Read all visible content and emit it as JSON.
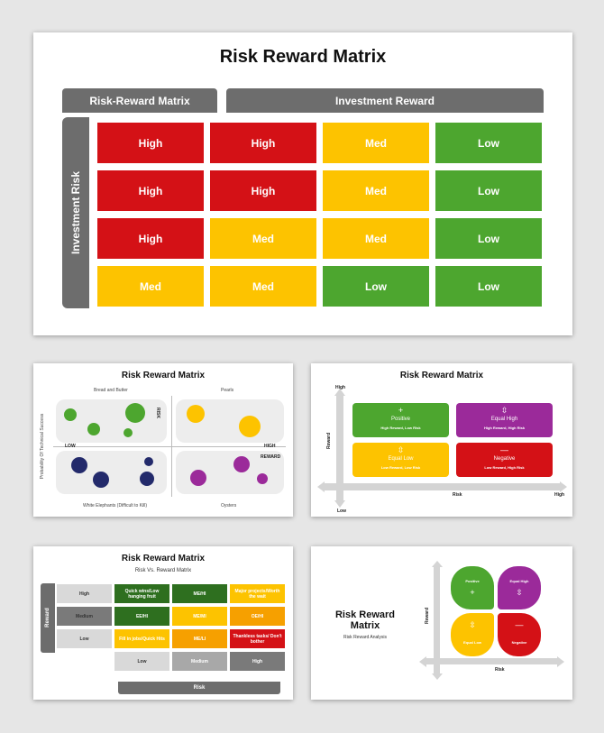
{
  "slide1": {
    "title": "Risk Reward Matrix",
    "header_left": "Risk-Reward Matrix",
    "header_right": "Investment Reward",
    "side_label": "Investment Risk",
    "rows": [
      [
        {
          "label": "High",
          "color": "red"
        },
        {
          "label": "High",
          "color": "red"
        },
        {
          "label": "Med",
          "color": "yellow"
        },
        {
          "label": "Low",
          "color": "green"
        }
      ],
      [
        {
          "label": "High",
          "color": "red"
        },
        {
          "label": "High",
          "color": "red"
        },
        {
          "label": "Med",
          "color": "yellow"
        },
        {
          "label": "Low",
          "color": "green"
        }
      ],
      [
        {
          "label": "High",
          "color": "red"
        },
        {
          "label": "Med",
          "color": "yellow"
        },
        {
          "label": "Med",
          "color": "yellow"
        },
        {
          "label": "Low",
          "color": "green"
        }
      ],
      [
        {
          "label": "Med",
          "color": "yellow"
        },
        {
          "label": "Med",
          "color": "yellow"
        },
        {
          "label": "Low",
          "color": "green"
        },
        {
          "label": "Low",
          "color": "green"
        }
      ]
    ]
  },
  "slide2": {
    "title": "Risk Reward Matrix",
    "top_left": "Bread and Butter",
    "top_right": "Pearls",
    "bottom_left": "White Elephants (Difficult to Kill)",
    "bottom_right": "Oysters",
    "low": "LOW",
    "high": "HIGH",
    "risk": "RISK",
    "reward": "REWARD",
    "y_axis": "Probability Of Technical Success"
  },
  "slide3": {
    "title": "Risk Reward Matrix",
    "y_high": "High",
    "y_low": "Low",
    "x_high": "High",
    "x_axis": "Risk",
    "y_axis": "Reward",
    "boxes": [
      {
        "name": "Positive",
        "sub": "High Reward, Low Risk",
        "icon": "+",
        "color": "green"
      },
      {
        "name": "Equal High",
        "sub": "High Reward, High Risk",
        "icon": "⇳",
        "color": "purple"
      },
      {
        "name": "Equal Low",
        "sub": "Low Reward, Low Risk",
        "icon": "⇳",
        "color": "yellow"
      },
      {
        "name": "Negative",
        "sub": "Low Reward, High Risk",
        "icon": "—",
        "color": "red"
      }
    ]
  },
  "slide4": {
    "title": "Risk Reward Matrix",
    "subtitle": "Risk Vs. Reward Matrix",
    "side_label": "Reward",
    "bottom_label": "Risk",
    "row_labels": [
      "High",
      "Medium",
      "Low"
    ],
    "col_labels": [
      "Low",
      "Medium",
      "High"
    ],
    "cells": [
      [
        {
          "label": "Quick wins/Low hanging fruit",
          "color": "dgreen"
        },
        {
          "label": "ME/HI",
          "color": "dgreen"
        },
        {
          "label": "Major projects/Worth the wait",
          "color": "yellow"
        }
      ],
      [
        {
          "label": "EE/HI",
          "color": "dgreen"
        },
        {
          "label": "ME/MI",
          "color": "yellow"
        },
        {
          "label": "OE/HI",
          "color": "orange"
        }
      ],
      [
        {
          "label": "Fill in jobs/Quick Hits",
          "color": "yellow"
        },
        {
          "label": "ME/LI",
          "color": "orange"
        },
        {
          "label": "Thankless tasks/ Don't bother",
          "color": "red"
        }
      ]
    ]
  },
  "slide5": {
    "title": "Risk Reward Matrix",
    "subtitle": "Risk Reward Analysis",
    "y_axis": "Reward",
    "x_axis": "Risk",
    "petals": [
      {
        "name": "Positive",
        "icon": "+",
        "color": "green"
      },
      {
        "name": "Equal High",
        "icon": "⇳",
        "color": "purple"
      },
      {
        "name": "Equal Low",
        "icon": "⇳",
        "color": "yellow"
      },
      {
        "name": "Negative",
        "icon": "—",
        "color": "red"
      }
    ]
  }
}
